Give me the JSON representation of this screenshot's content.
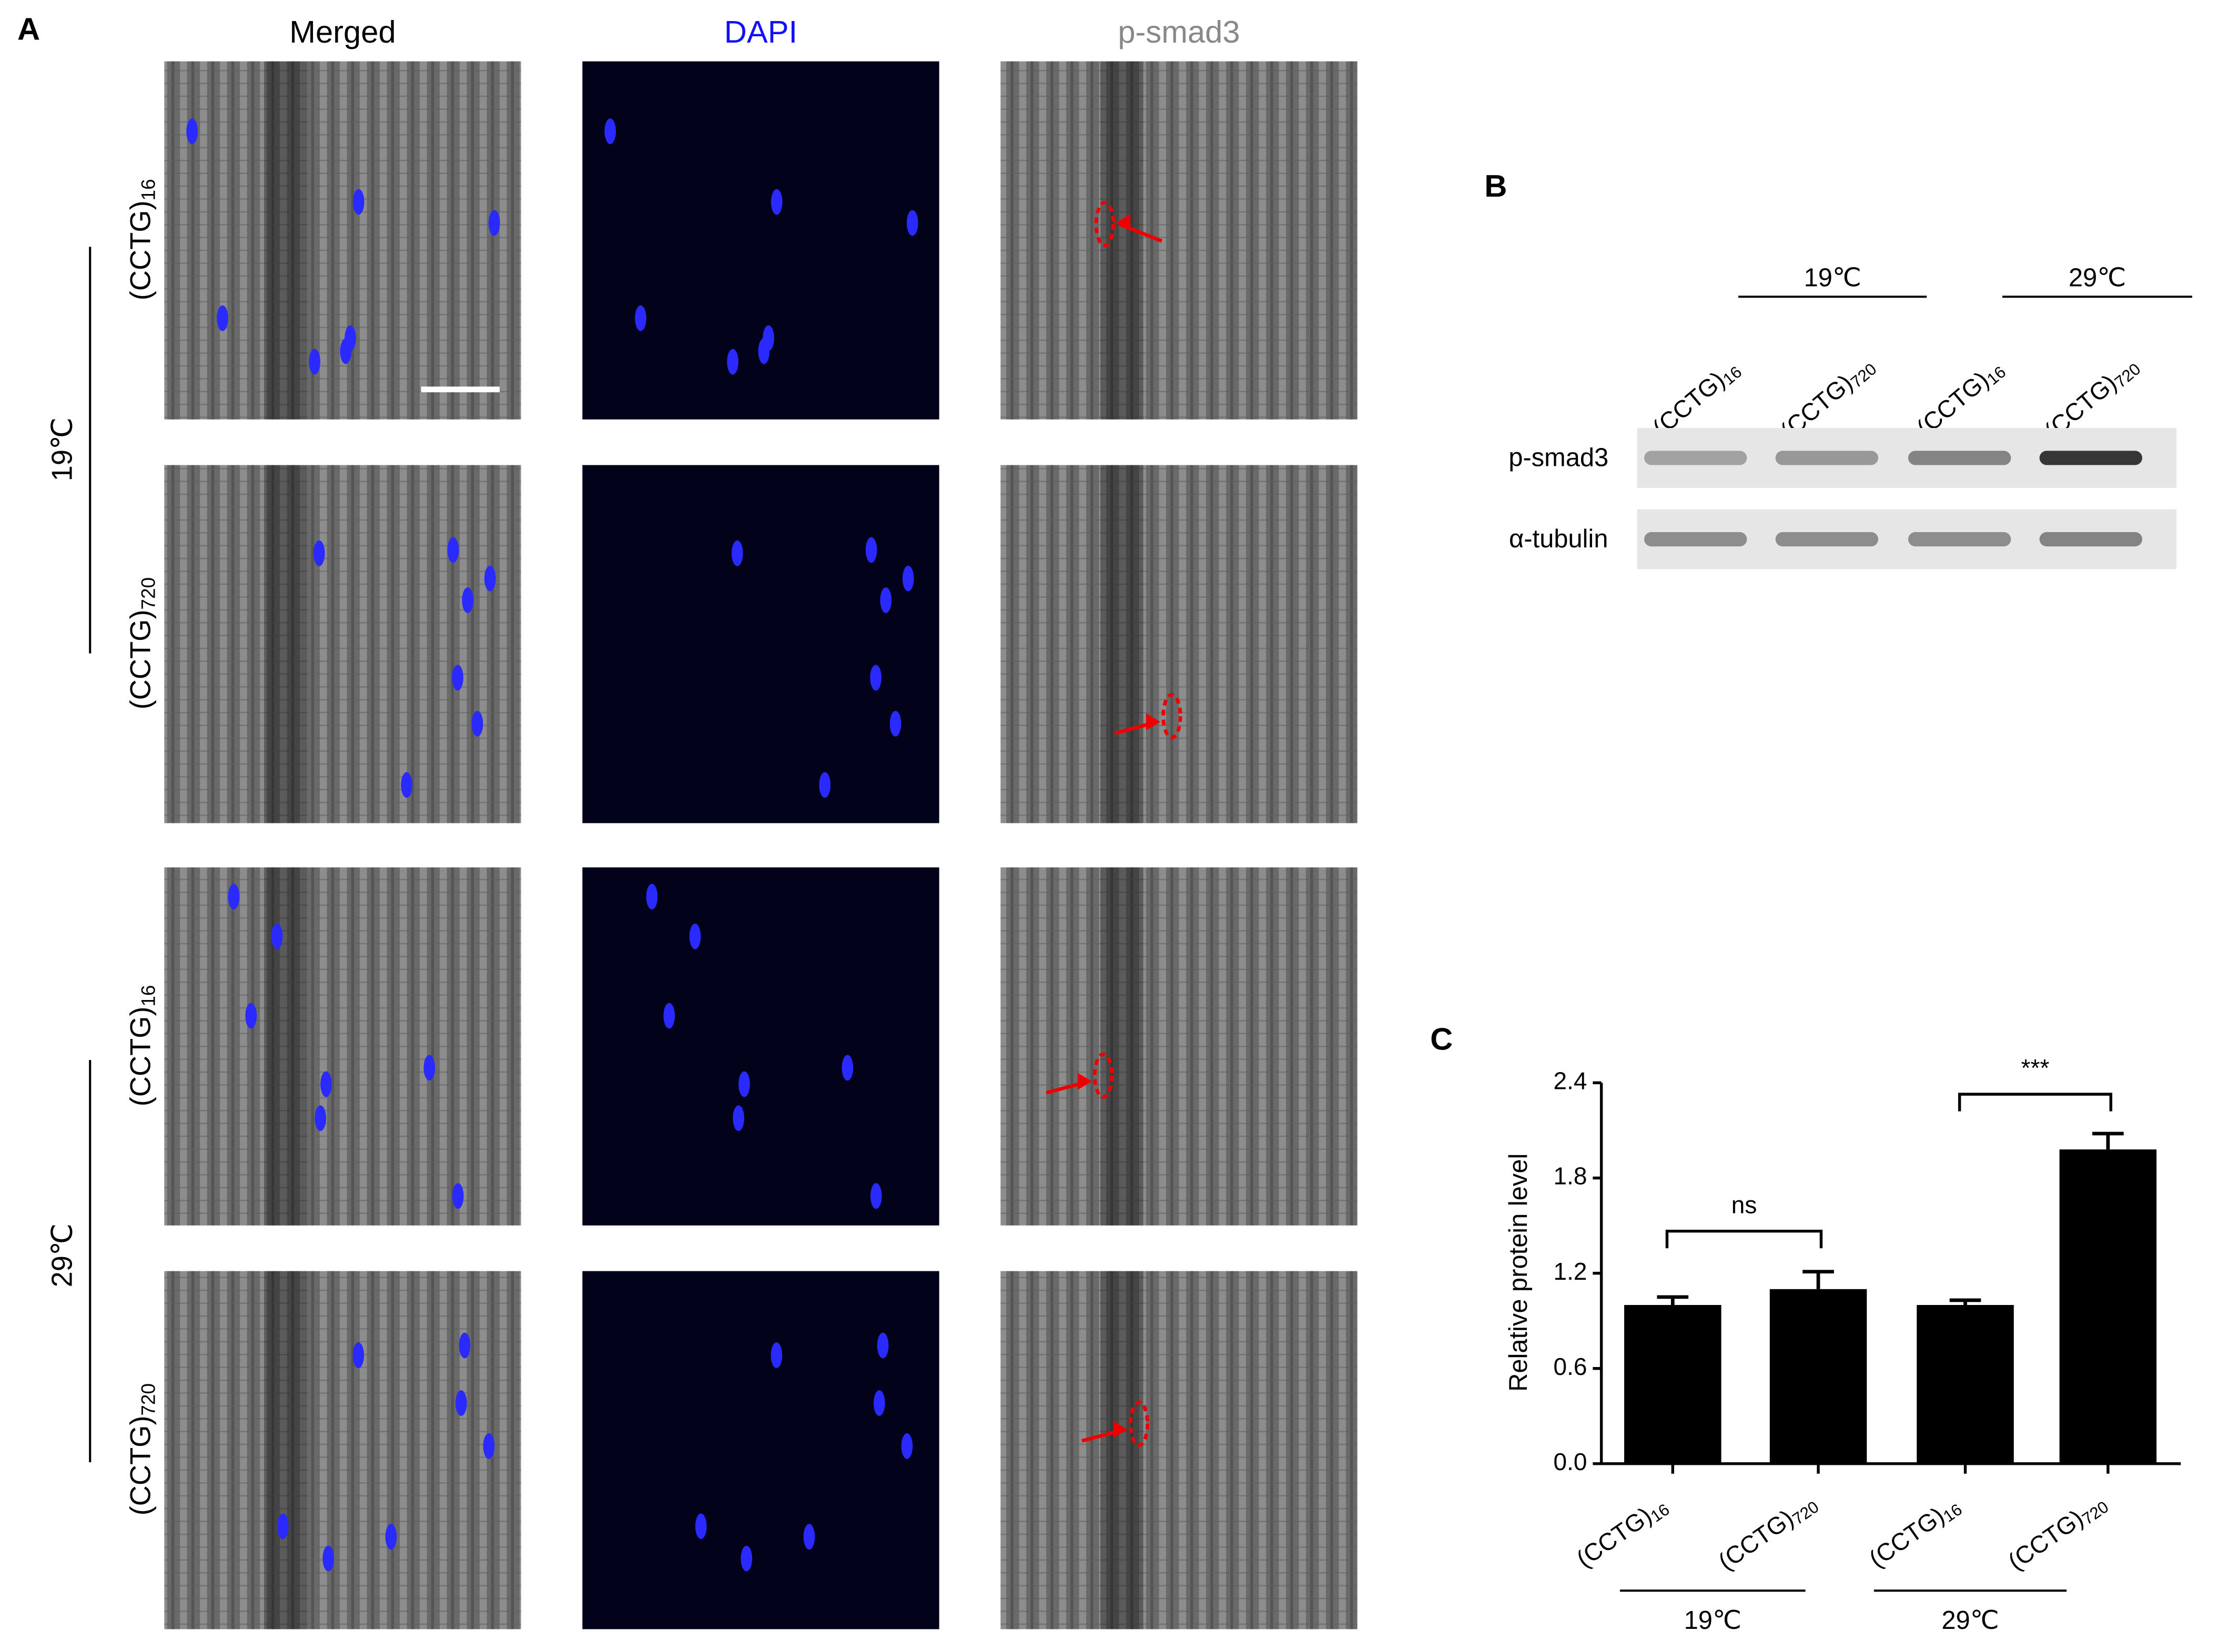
{
  "panel_a": {
    "letter": "A",
    "columns": [
      "Merged",
      "DAPI",
      "p-smad3"
    ],
    "rows": [
      "(CCTG)16",
      "(CCTG)720",
      "(CCTG)16",
      "(CCTG)720"
    ],
    "groups": [
      "19℃",
      "29℃"
    ]
  },
  "panel_b": {
    "letter": "B",
    "groups": [
      "19℃",
      "29℃"
    ],
    "lanes": [
      "(CCTG)16",
      "(CCTG)720",
      "(CCTG)16",
      "(CCTG)720"
    ],
    "bands": [
      "p-smad3",
      "α-tubulin"
    ]
  },
  "chart_data": {
    "type": "bar",
    "letter": "C",
    "y_label": "Relative protein level",
    "categories": [
      "(CCTG)16",
      "(CCTG)720",
      "(CCTG)16",
      "(CCTG)720"
    ],
    "values": [
      1.0,
      1.1,
      1.0,
      1.98
    ],
    "errors": [
      0.05,
      0.11,
      0.03,
      0.1
    ],
    "color": "#000000",
    "groups": [
      "19℃",
      "29℃"
    ],
    "significance": [
      "ns",
      "***"
    ],
    "ylim": [
      0,
      2.4
    ],
    "yticks": [
      {
        "value": 0,
        "label": "0.0"
      },
      0.6,
      1.2,
      1.8,
      2.4
    ]
  }
}
